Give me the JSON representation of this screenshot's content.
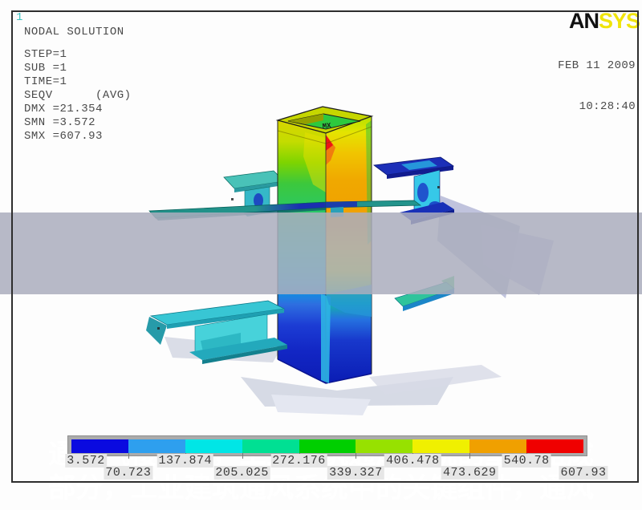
{
  "header": {
    "window_id": "1",
    "title": "NODAL SOLUTION",
    "params": [
      "STEP=1",
      "SUB =1",
      "TIME=1",
      "SEQV      (AVG)",
      "DMX =21.354",
      "SMN =3.572",
      "SMX =607.93"
    ],
    "logo_black": "AN",
    "logo_yellow": "SYS",
    "logo_color": "#f0e40a",
    "date": "FEB 11 2009",
    "time": "10:28:40"
  },
  "model": {
    "max_marker_label": "MX",
    "result_type": "von Mises stress (SEQV)",
    "min_value": "3.572",
    "max_value": "607.93"
  },
  "overlay": {
    "line1": "通风气楼图片，工业建筑通风系统的重要组成",
    "line2": "部分，工业建筑通风系统中的关键组件，通风",
    "band_color": "#abaebe",
    "text_color": "#ffffff"
  },
  "legend": {
    "colors": [
      "#0a0ae0",
      "#2e9fee",
      "#00e6e6",
      "#00e093",
      "#00cf00",
      "#97e100",
      "#f0f000",
      "#f0a000",
      "#f00000"
    ],
    "labels_top": [
      "3.572",
      "137.874",
      "272.176",
      "406.478",
      "540.78"
    ],
    "labels_bottom": [
      "70.723",
      "205.025",
      "339.327",
      "473.629",
      "607.93"
    ]
  }
}
